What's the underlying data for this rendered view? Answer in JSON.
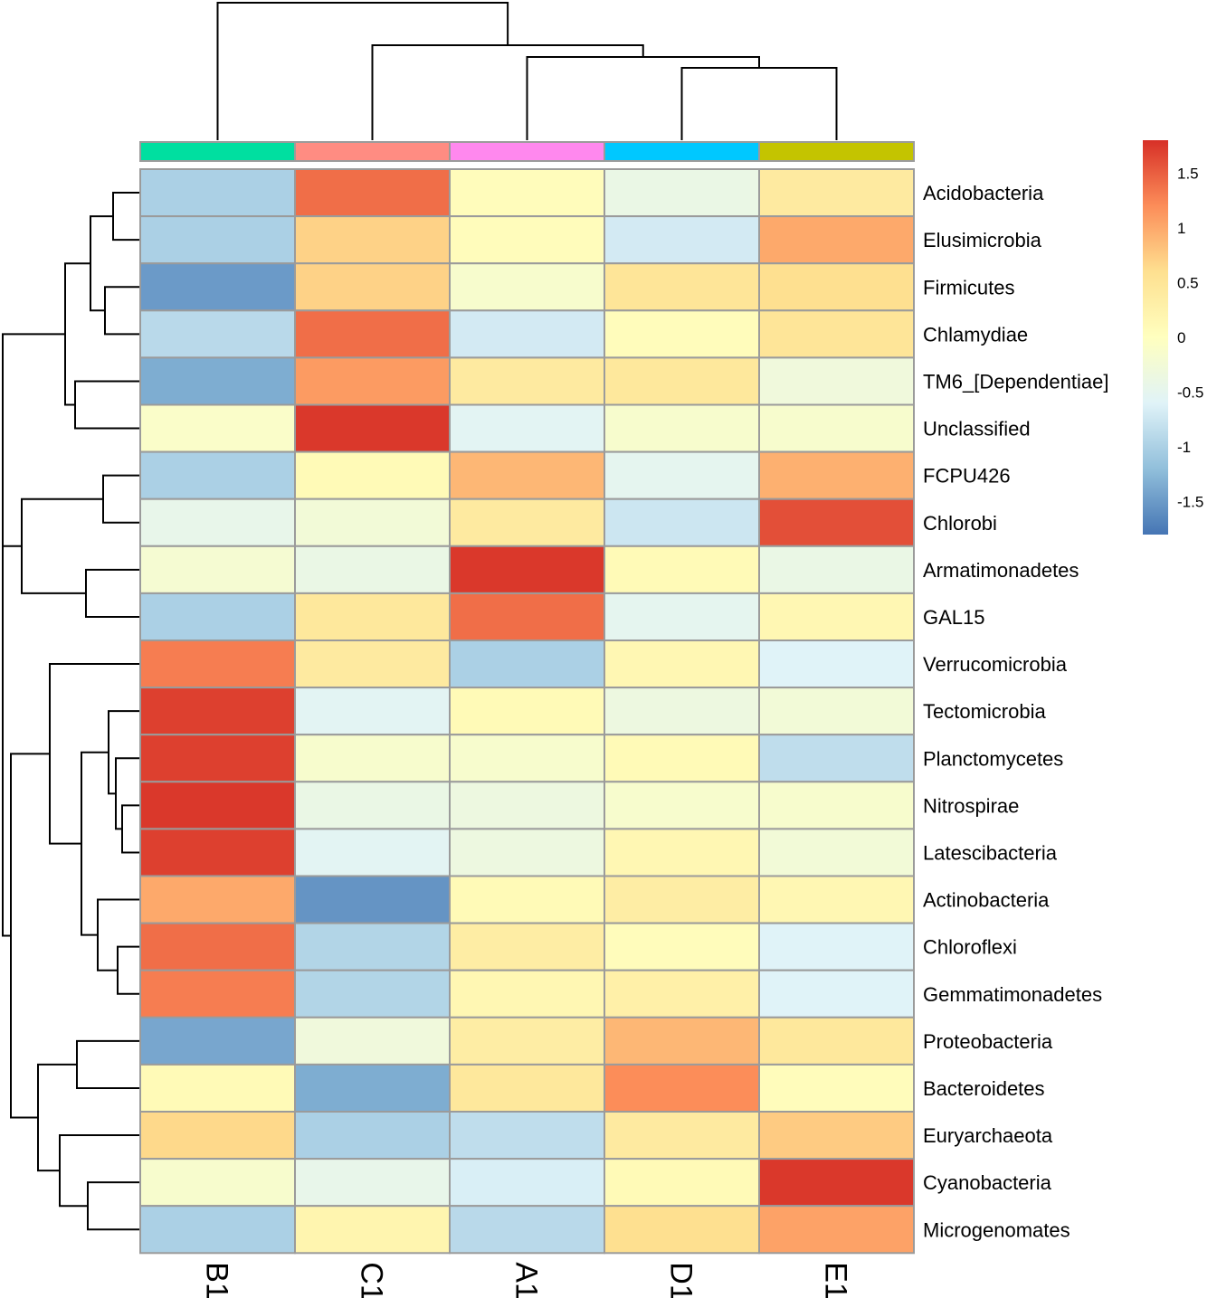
{
  "chart_data": {
    "type": "heatmap",
    "title": "",
    "columns": [
      "B1",
      "C1",
      "A1",
      "D1",
      "E1"
    ],
    "column_annotation_colors": [
      "#00DFA0",
      "#FF8C82",
      "#FF88EE",
      "#00C8FF",
      "#C4C400"
    ],
    "rows": [
      "Acidobacteria",
      "Elusimicrobia",
      "Firmicutes",
      "Chlamydiae",
      "TM6_[Dependentiae]",
      "Unclassified",
      "FCPU426",
      "Chlorobi",
      "Armatimonadetes",
      "GAL15",
      "Verrucomicrobia",
      "Tectomicrobia",
      "Planctomycetes",
      "Nitrospirae",
      "Latescibacteria",
      "Actinobacteria",
      "Chloroflexi",
      "Gemmatimonadetes",
      "Proteobacteria",
      "Bacteroidetes",
      "Euryarchaeota",
      "Cyanobacteria",
      "Microgenomates"
    ],
    "values": [
      [
        -1.0,
        1.4,
        0.05,
        -0.4,
        0.4
      ],
      [
        -1.0,
        0.7,
        0.05,
        -0.7,
        1.0
      ],
      [
        -1.5,
        0.7,
        -0.15,
        0.5,
        0.6
      ],
      [
        -0.9,
        1.4,
        -0.7,
        0.05,
        0.5
      ],
      [
        -1.35,
        1.1,
        0.4,
        0.45,
        -0.3
      ],
      [
        -0.1,
        1.75,
        -0.55,
        -0.15,
        -0.15
      ],
      [
        -1.0,
        0.1,
        0.9,
        -0.5,
        0.95
      ],
      [
        -0.45,
        -0.25,
        0.4,
        -0.75,
        1.6
      ],
      [
        -0.2,
        -0.4,
        1.75,
        0.1,
        -0.4
      ],
      [
        -1.0,
        0.45,
        1.4,
        -0.5,
        0.15
      ],
      [
        1.3,
        0.4,
        -1.0,
        0.15,
        -0.6
      ],
      [
        1.7,
        -0.55,
        0.1,
        -0.35,
        -0.25
      ],
      [
        1.7,
        -0.15,
        -0.15,
        0.1,
        -0.85
      ],
      [
        1.75,
        -0.4,
        -0.35,
        -0.15,
        -0.15
      ],
      [
        1.7,
        -0.55,
        -0.35,
        0.15,
        -0.25
      ],
      [
        1.0,
        -1.55,
        0.1,
        0.35,
        0.15
      ],
      [
        1.4,
        -0.95,
        0.35,
        0.05,
        -0.6
      ],
      [
        1.3,
        -0.95,
        0.15,
        0.3,
        -0.6
      ],
      [
        -1.4,
        -0.3,
        0.35,
        0.9,
        0.45
      ],
      [
        0.1,
        -1.35,
        0.45,
        1.2,
        0.05
      ],
      [
        0.65,
        -1.0,
        -0.85,
        0.4,
        0.75
      ],
      [
        -0.15,
        -0.45,
        -0.65,
        0.1,
        1.75
      ],
      [
        -1.0,
        0.2,
        -0.9,
        0.6,
        1.05
      ]
    ],
    "legend": {
      "min": -1.8,
      "max": 1.8,
      "ticks": [
        1.5,
        1,
        0.5,
        0,
        -0.5,
        -1,
        -1.5
      ],
      "tick_labels": [
        "1.5",
        "1",
        "0.5",
        "0",
        "-0.5",
        "-1",
        "-1.5"
      ],
      "colors": [
        "#4575B4",
        "#91BFDB",
        "#E0F3F8",
        "#FFFFBF",
        "#FEE090",
        "#FC8D59",
        "#D73027"
      ],
      "placement": "top-right"
    }
  }
}
